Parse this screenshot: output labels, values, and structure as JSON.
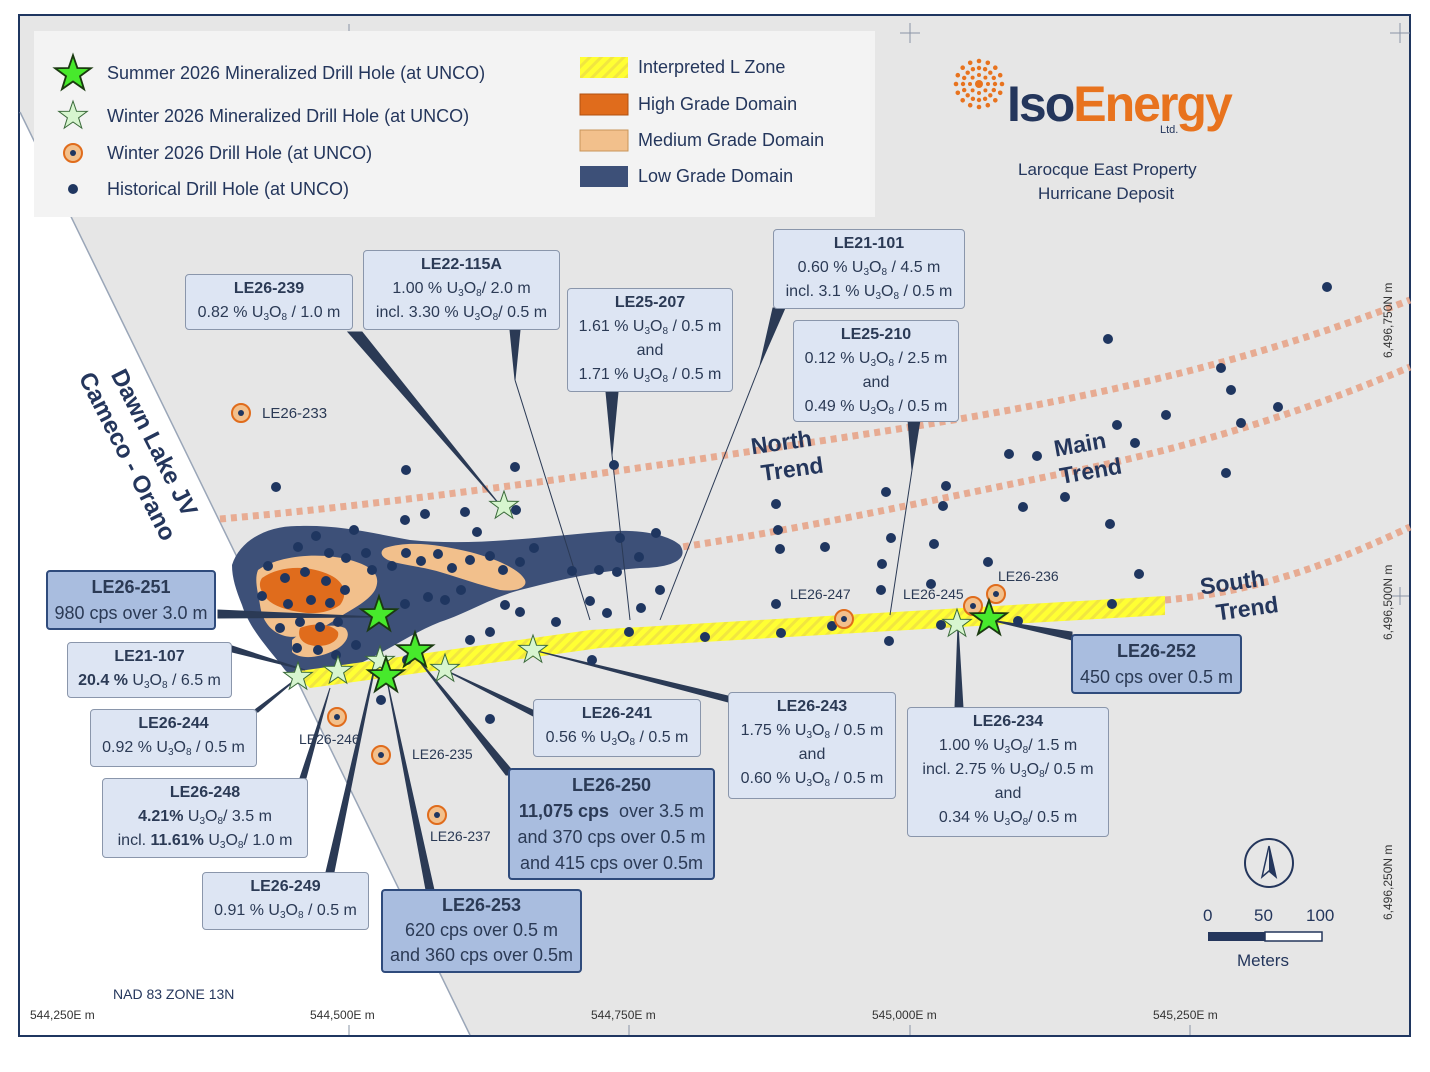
{
  "legend": {
    "summer_star": "Summer 2026 Mineralized Drill Hole (at UNCO)",
    "winter_star": "Winter 2026 Mineralized Drill Hole (at UNCO)",
    "winter_hole": "Winter 2026 Drill Hole (at UNCO)",
    "historical": "Historical Drill Hole (at UNCO)",
    "l_zone": "Interpreted L Zone",
    "high_grade": "High Grade Domain",
    "medium_grade": "Medium Grade Domain",
    "low_grade": "Low Grade Domain"
  },
  "logo": {
    "iso": "Iso",
    "energy": "Energy",
    "ltd": "Ltd.",
    "line1": "Larocque East Property",
    "line2": "Hurricane Deposit"
  },
  "region": {
    "line1": "Dawn Lake JV",
    "line2": "Cameco - Orano"
  },
  "trends": {
    "north": [
      "North",
      "Trend"
    ],
    "main": [
      "Main",
      "Trend"
    ],
    "south": [
      "South",
      "Trend"
    ]
  },
  "hole_labels": [
    "LE26-233",
    "LE26-247",
    "LE26-245",
    "LE26-236",
    "LE26-246",
    "LE26-235",
    "LE26-237"
  ],
  "callouts": {
    "le26_239": {
      "title": "LE26-239",
      "l1a": "0.82 % U",
      "l1b": "3",
      "l1c": "O",
      "l1d": "8",
      "l1e": " / 1.0 m"
    },
    "le22_115a": {
      "title": "LE22-115A",
      "l1a": "1.00 % U",
      "l1b": "3",
      "l1c": "O",
      "l1d": "8",
      "l1e": "/ 2.0 m",
      "l2a": "incl. 3.30 % U",
      "l2b": "3",
      "l2c": "O",
      "l2d": "8",
      "l2e": "/ 0.5 m"
    },
    "le25_207": {
      "title": "LE25-207",
      "l1a": "1.61 % U",
      "l1b": "3",
      "l1c": "O",
      "l1d": "8",
      "l1e": " / 0.5 m",
      "and": "and",
      "l2a": "1.71 % U",
      "l2b": "3",
      "l2c": "O",
      "l2d": "8",
      "l2e": " / 0.5 m"
    },
    "le21_101": {
      "title": "LE21-101",
      "l1a": "0.60 % U",
      "l1b": "3",
      "l1c": "O",
      "l1d": "8",
      "l1e": " / 4.5 m",
      "l2a": "incl. 3.1 % U",
      "l2b": "3",
      "l2c": "O",
      "l2d": "8",
      "l2e": " / 0.5 m"
    },
    "le25_210": {
      "title": "LE25-210",
      "l1a": "0.12 % U",
      "l1b": "3",
      "l1c": "O",
      "l1d": "8",
      "l1e": " / 2.5 m",
      "and": "and",
      "l2a": "0.49 % U",
      "l2b": "3",
      "l2c": "O",
      "l2d": "8",
      "l2e": " / 0.5 m"
    },
    "le26_251": {
      "title": "LE26-251",
      "l1": "980 cps over 3.0 m"
    },
    "le21_107": {
      "title": "LE21-107",
      "l1bold": "20.4 %",
      "l1a": " U",
      "l1b": "3",
      "l1c": "O",
      "l1d": "8",
      "l1e": " / 6.5 m"
    },
    "le26_244": {
      "title": "LE26-244",
      "l1a": "0.92 % U",
      "l1b": "3",
      "l1c": "O",
      "l1d": "8",
      "l1e": " / 0.5 m"
    },
    "le26_248": {
      "title": "LE26-248",
      "l1bold": "4.21%",
      "l1a": " U",
      "l1b": "3",
      "l1c": "O",
      "l1d": "8",
      "l1e": "/ 3.5 m",
      "l2pre": "incl. ",
      "l2bold": "11.61%",
      "l2a": " U",
      "l2b": "3",
      "l2c": "O",
      "l2d": "8",
      "l2e": "/ 1.0 m"
    },
    "le26_249": {
      "title": "LE26-249",
      "l1a": "0.91 % U",
      "l1b": "3",
      "l1c": "O",
      "l1d": "8",
      "l1e": " / 0.5 m"
    },
    "le26_253": {
      "title": "LE26-253",
      "l1": "620 cps over 0.5 m",
      "l2": "and 360 cps over 0.5m"
    },
    "le26_250": {
      "title": "LE26-250",
      "l1bold": "11,075 cps",
      "l1rest": "  over 3.5 m",
      "l2": "and 370 cps over 0.5 m",
      "l3": "and 415 cps over 0.5m"
    },
    "le26_241": {
      "title": "LE26-241",
      "l1a": "0.56 % U",
      "l1b": "3",
      "l1c": "O",
      "l1d": "8",
      "l1e": " / 0.5 m"
    },
    "le26_243": {
      "title": "LE26-243",
      "l1a": "1.75 % U",
      "l1b": "3",
      "l1c": "O",
      "l1d": "8",
      "l1e": " / 0.5 m",
      "and": "and",
      "l2a": "0.60 % U",
      "l2b": "3",
      "l2c": "O",
      "l2d": "8",
      "l2e": " / 0.5 m"
    },
    "le26_234": {
      "title": "LE26-234",
      "l1a": "1.00 % U",
      "l1b": "3",
      "l1c": "O",
      "l1d": "8",
      "l1e": "/ 1.5 m",
      "l2a": "incl. 2.75 % U",
      "l2b": "3",
      "l2c": "O",
      "l2d": "8",
      "l2e": "/ 0.5 m",
      "and": "and",
      "l3a": "0.34 % U",
      "l3b": "3",
      "l3c": "O",
      "l3d": "8",
      "l3e": "/ 0.5 m"
    },
    "le26_252": {
      "title": "LE26-252",
      "l1": "450 cps over 0.5 m"
    }
  },
  "scale": {
    "t0": "0",
    "t50": "50",
    "t100": "100",
    "units": "Meters"
  },
  "datum": "NAD 83 ZONE 13N",
  "coords": {
    "x": [
      "544,250E m",
      "544,500E m",
      "544,750E m",
      "545,000E m",
      "545,250E m"
    ],
    "y": [
      "6,496,750N m",
      "6,496,500N m",
      "6,496,250N m"
    ]
  },
  "colors": {
    "map_bg": "#e6e6e6",
    "low_grade": "#3d5078",
    "medium_grade": "#f2c08c",
    "high_grade": "#e06c1c",
    "l_zone": "#ffff33",
    "trend": "#e8a58a",
    "summer_star": "#47e92c",
    "winter_star": "#d7f5cf",
    "title_blue": "#24365c",
    "logo_orange": "#e8731e"
  }
}
